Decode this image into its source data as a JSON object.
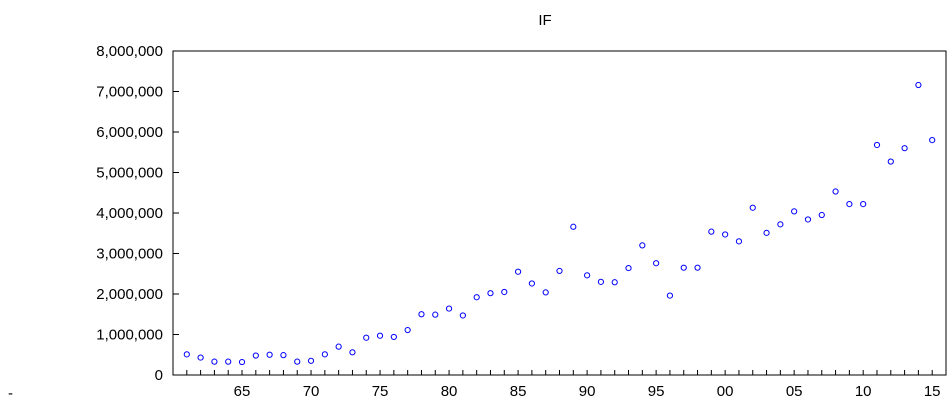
{
  "page": {
    "corner_mark": "-"
  },
  "chart_data": {
    "type": "scatter",
    "title": "IF",
    "xlabel": "",
    "ylabel": "",
    "xlim": [
      1960,
      2016
    ],
    "ylim": [
      0,
      8000000
    ],
    "grid": false,
    "legend": "none",
    "marker_color": "#0000ff",
    "y_ticks": [
      0,
      1000000,
      2000000,
      3000000,
      4000000,
      5000000,
      6000000,
      7000000,
      8000000
    ],
    "y_tick_labels": [
      "0",
      "1,000,000",
      "2,000,000",
      "3,000,000",
      "4,000,000",
      "5,000,000",
      "6,000,000",
      "7,000,000",
      "8,000,000"
    ],
    "x_ticks": [
      1965,
      1970,
      1975,
      1980,
      1985,
      1990,
      1995,
      2000,
      2005,
      2010,
      2015
    ],
    "x_tick_labels": [
      "65",
      "70",
      "75",
      "80",
      "85",
      "90",
      "95",
      "00",
      "05",
      "10",
      "15"
    ],
    "x": [
      1961,
      1962,
      1963,
      1964,
      1965,
      1966,
      1967,
      1968,
      1969,
      1970,
      1971,
      1972,
      1973,
      1974,
      1975,
      1976,
      1977,
      1978,
      1979,
      1980,
      1981,
      1982,
      1983,
      1984,
      1985,
      1986,
      1987,
      1988,
      1989,
      1990,
      1991,
      1992,
      1993,
      1994,
      1995,
      1996,
      1997,
      1998,
      1999,
      2000,
      2001,
      2002,
      2003,
      2004,
      2005,
      2006,
      2007,
      2008,
      2009,
      2010,
      2011,
      2012,
      2013,
      2014,
      2015
    ],
    "y": [
      510000,
      430000,
      330000,
      330000,
      320000,
      480000,
      500000,
      490000,
      330000,
      350000,
      510000,
      700000,
      560000,
      920000,
      970000,
      940000,
      1110000,
      1500000,
      1490000,
      1640000,
      1470000,
      1920000,
      2020000,
      2050000,
      2550000,
      2260000,
      2040000,
      2570000,
      3660000,
      2460000,
      2300000,
      2290000,
      2640000,
      3200000,
      2760000,
      1960000,
      2650000,
      2650000,
      3540000,
      3470000,
      3300000,
      4130000,
      3510000,
      3720000,
      4040000,
      3840000,
      3950000,
      4530000,
      4220000,
      4220000,
      5680000,
      5270000,
      5600000,
      7160000,
      5800000
    ]
  }
}
